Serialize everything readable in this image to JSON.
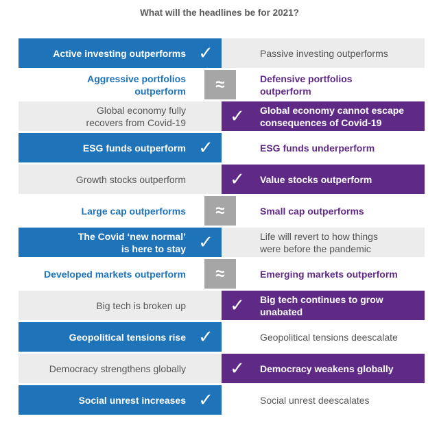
{
  "title": "What will the headlines be for 2021?",
  "rows": [
    {
      "left": "Active investing outperforms",
      "right": "Passive investing outperforms",
      "verdict": "left",
      "mark": "✓"
    },
    {
      "left": "Aggressive portfolios\noutperform",
      "right": "Defensive portfolios\noutperform",
      "verdict": "tie",
      "mark": "≈"
    },
    {
      "left": "Global economy fully\nrecovers from Covid-19",
      "right": "Global economy cannot escape\nconsequences of Covid-19",
      "verdict": "right",
      "mark": "✓"
    },
    {
      "left": "ESG funds outperform",
      "right": "ESG funds underperform",
      "verdict": "left-r",
      "mark": "✓"
    },
    {
      "left": "Growth stocks outperform",
      "right": "Value stocks outperform",
      "verdict": "right",
      "mark": "✓"
    },
    {
      "left": "Large cap outperforms",
      "right": "Small cap outperforms",
      "verdict": "tie",
      "mark": "≈"
    },
    {
      "left": "The Covid ‘new normal’\nis here to stay",
      "right": "Life will revert to how things\nwere before the pandemic",
      "verdict": "left",
      "mark": "✓"
    },
    {
      "left": "Developed markets outperform",
      "right": "Emerging markets outperform",
      "verdict": "tie",
      "mark": "≈"
    },
    {
      "left": "Big tech is broken up",
      "right": "Big tech continues to grow\nunabated",
      "verdict": "right",
      "mark": "✓"
    },
    {
      "left": "Geopolitical tensions rise",
      "right": "Geopolitical tensions deescalate",
      "verdict": "left",
      "mark": "✓"
    },
    {
      "left": "Democracy strengthens globally",
      "right": "Democracy weakens globally",
      "verdict": "right",
      "mark": "✓"
    },
    {
      "left": "Social unrest increases",
      "right": "Social unrest deescalates",
      "verdict": "left",
      "mark": "✓"
    }
  ],
  "colors": {
    "blue": "#1e73b9",
    "purple": "#5f2a86",
    "tie": "#a6a6a6",
    "grey": "#ececec"
  }
}
